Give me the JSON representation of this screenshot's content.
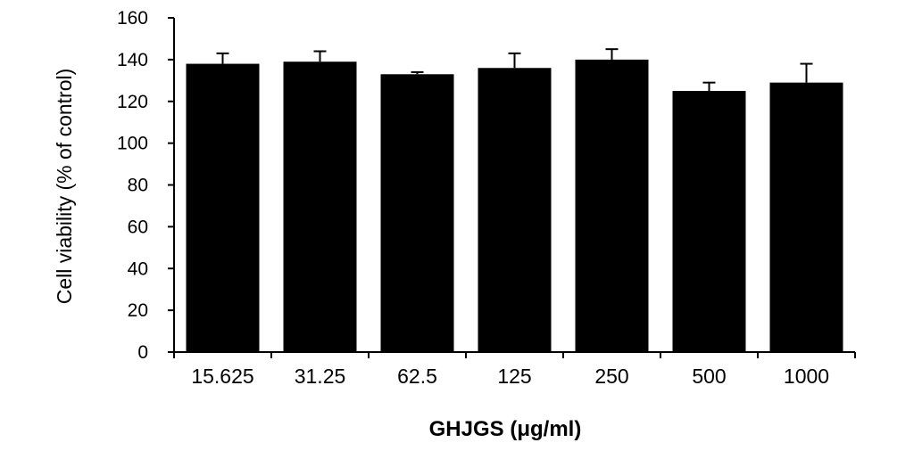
{
  "chart_data": {
    "type": "bar",
    "title": "",
    "xlabel": "GHJGS (μg/ml)",
    "ylabel": "Cell viability  (% of control)",
    "categories": [
      "15.625",
      "31.25",
      "62.5",
      "125",
      "250",
      "500",
      "1000"
    ],
    "values": [
      138,
      139,
      133,
      136,
      140,
      125,
      129
    ],
    "errors": [
      5,
      5,
      1,
      7,
      5,
      4,
      9
    ],
    "ylim": [
      0,
      160
    ],
    "yticks": [
      0,
      20,
      40,
      60,
      80,
      100,
      120,
      140,
      160
    ],
    "grid": false,
    "legend": "none",
    "colors": {
      "bar": "#000000",
      "axis": "#000000"
    }
  }
}
